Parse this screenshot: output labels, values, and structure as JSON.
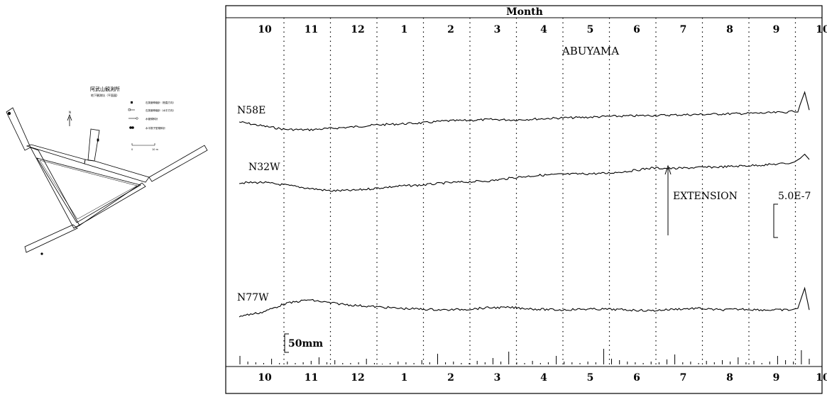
{
  "map": {
    "title": "阿武山観測所",
    "subtitle": "地下観測坑（平面図）",
    "north_symbol": "N",
    "legend": [
      {
        "marker": "square",
        "label": "石英管伸縮計（鉛直方向）"
      },
      {
        "marker": "line-square",
        "label": "石英管伸縮計（水平方向）"
      },
      {
        "marker": "line-circle",
        "label": "水管傾斜計"
      },
      {
        "marker": "filled-circle",
        "label": "水平振子型傾斜計"
      }
    ],
    "scale_start": "0",
    "scale_end": "10 m"
  },
  "chart_data": {
    "type": "line",
    "title": "Month",
    "station_label": "ABUYAMA",
    "months_top": [
      "10",
      "11",
      "12",
      "1",
      "2",
      "3",
      "4",
      "5",
      "6",
      "7",
      "8",
      "9",
      "10"
    ],
    "months_bottom": [
      "10",
      "11",
      "12",
      "1",
      "2",
      "3",
      "4",
      "5",
      "6",
      "7",
      "8",
      "9",
      "10"
    ],
    "x": [
      0,
      0.5,
      1,
      1.5,
      2,
      2.5,
      3,
      3.5,
      4,
      4.5,
      5,
      5.5,
      6,
      6.5,
      7,
      7.5,
      8,
      8.5,
      9,
      9.5,
      10,
      10.5,
      11,
      11.5,
      12,
      12.2,
      12.35,
      12.45
    ],
    "series": [
      {
        "name": "N58E",
        "values": [
          0,
          -0.4,
          -0.75,
          -0.8,
          -0.65,
          -0.5,
          -0.3,
          -0.2,
          -0.1,
          0.1,
          0.15,
          0.25,
          0.2,
          0.3,
          0.4,
          0.45,
          0.55,
          0.6,
          0.65,
          0.7,
          0.75,
          0.8,
          0.85,
          0.9,
          1.0,
          1.1,
          3.0,
          1.2
        ]
      },
      {
        "name": "N32W",
        "values": [
          0,
          0.05,
          -0.2,
          -0.5,
          -0.75,
          -0.7,
          -0.5,
          -0.3,
          -0.2,
          0.0,
          0.1,
          0.2,
          0.5,
          0.7,
          0.8,
          0.85,
          0.9,
          1.1,
          1.4,
          1.35,
          1.45,
          1.5,
          1.6,
          1.7,
          1.85,
          2.1,
          2.7,
          2.2
        ]
      },
      {
        "name": "N77W",
        "values": [
          0,
          0.25,
          0.8,
          1.05,
          0.85,
          0.7,
          0.6,
          0.5,
          0.45,
          0.4,
          0.45,
          0.55,
          0.55,
          0.45,
          0.4,
          0.45,
          0.45,
          0.4,
          0.35,
          0.45,
          0.5,
          0.4,
          0.45,
          0.4,
          0.4,
          0.5,
          1.8,
          0.4
        ]
      }
    ],
    "scale_bar_label": "5.0E-7",
    "annotation": "EXTENSION",
    "rain_scale_label": "50mm",
    "rain_values": [
      12,
      4,
      3,
      2,
      8,
      2,
      4,
      2,
      3,
      5,
      10,
      3,
      6,
      2,
      2,
      3,
      8,
      2,
      1,
      2,
      4,
      3,
      2,
      6,
      3,
      15,
      3,
      4,
      2,
      2,
      5,
      3,
      9,
      4,
      18,
      3,
      2,
      5,
      2,
      3,
      12,
      4,
      3,
      2,
      4,
      3,
      22,
      8,
      6,
      4,
      3,
      2,
      4,
      3,
      7,
      14,
      3,
      4,
      2,
      5,
      3,
      6,
      4,
      10,
      3,
      5,
      2,
      4,
      12,
      6,
      4,
      20,
      8
    ]
  }
}
